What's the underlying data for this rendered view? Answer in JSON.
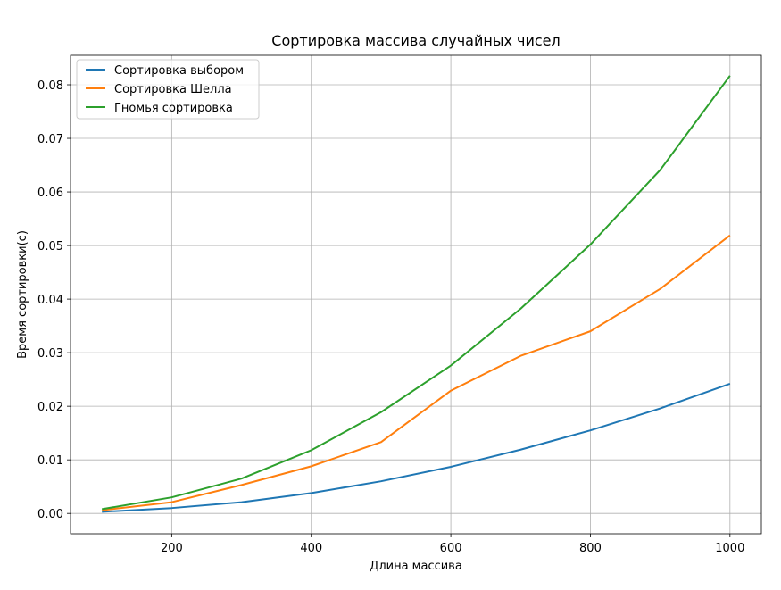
{
  "chart_data": {
    "type": "line",
    "title": "Сортировка массива случайных чисел",
    "xlabel": "Длина массива",
    "ylabel": "Время сортировки(с)",
    "xlim": [
      55,
      1045
    ],
    "ylim": [
      -0.0038,
      0.0855
    ],
    "x": [
      100,
      200,
      300,
      400,
      500,
      600,
      700,
      800,
      900,
      1000
    ],
    "x_ticks": [
      200,
      400,
      600,
      800,
      1000
    ],
    "y_ticks": [
      0.0,
      0.01,
      0.02,
      0.03,
      0.04,
      0.05,
      0.06,
      0.07,
      0.08
    ],
    "y_tick_labels": [
      "0.00",
      "0.01",
      "0.02",
      "0.03",
      "0.04",
      "0.05",
      "0.06",
      "0.07",
      "0.08"
    ],
    "grid": true,
    "legend_position": "top-left",
    "series": [
      {
        "name": "Сортировка выбором",
        "color": "#1f77b4",
        "values": [
          0.0003,
          0.001,
          0.0021,
          0.0038,
          0.006,
          0.0087,
          0.0119,
          0.0155,
          0.0196,
          0.0242
        ]
      },
      {
        "name": "Сортировка Шелла",
        "color": "#ff7f0e",
        "values": [
          0.0006,
          0.0021,
          0.0053,
          0.0088,
          0.0133,
          0.0229,
          0.0294,
          0.034,
          0.0419,
          0.0519
        ]
      },
      {
        "name": "Гномья сортировка",
        "color": "#2ca02c",
        "values": [
          0.0008,
          0.003,
          0.0065,
          0.0118,
          0.0189,
          0.0276,
          0.0382,
          0.0502,
          0.0641,
          0.0817
        ]
      }
    ]
  }
}
